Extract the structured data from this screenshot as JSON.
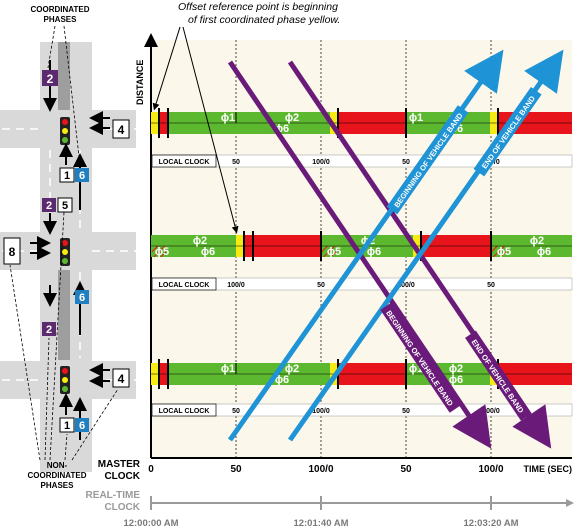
{
  "annotations": {
    "coordinated_phases": [
      "COORDINATED",
      "PHASES"
    ],
    "offset_note": [
      "Offset reference point is beginning",
      "of first coordinated phase yellow."
    ],
    "non_coordinated_phases": [
      "NON-",
      "COORDINATED",
      "PHASES"
    ]
  },
  "axes": {
    "y_label": "DISTANCE",
    "x_label": "TIME (SEC)",
    "master_clock": [
      "MASTER",
      "CLOCK"
    ],
    "master_ticks": [
      "0",
      "50",
      "100/0",
      "50",
      "100/0"
    ],
    "real_time_clock": [
      "REAL-TIME",
      "CLOCK"
    ],
    "real_time_ticks": [
      "12:00:00 AM",
      "12:01:40 AM",
      "12:03:20 AM"
    ]
  },
  "local_clock_label": "LOCAL CLOCK",
  "intersections": [
    {
      "name": "top",
      "clock_ticks": [
        "50",
        "100/0",
        "50",
        "100/0"
      ],
      "phase_labels": [
        "ϕ1",
        "ϕ2",
        "ϕ6",
        "ϕ1",
        "ϕ2",
        "ϕ6"
      ]
    },
    {
      "name": "middle",
      "clock_ticks": [
        "100/0",
        "50",
        "100/0",
        "50"
      ],
      "phase_labels": [
        "ϕ5",
        "ϕ2",
        "ϕ6",
        "ϕ5",
        "ϕ2",
        "ϕ6",
        "ϕ5",
        "ϕ2",
        "ϕ6"
      ]
    },
    {
      "name": "bottom",
      "clock_ticks": [
        "50",
        "100/0",
        "50",
        "100/0"
      ],
      "phase_labels": [
        "ϕ1",
        "ϕ2",
        "ϕ6",
        "ϕ1",
        "ϕ2",
        "ϕ6"
      ]
    }
  ],
  "bands": {
    "beginning": "BEGINNING OF VEHICLE BAND",
    "end": "END OF VEHICLE BAND"
  },
  "map": {
    "top_phases": {
      "purple": "2",
      "box_right": "4",
      "box_white": "1",
      "box_blue": "6"
    },
    "middle_phases": {
      "purple": "2",
      "box_white": "5",
      "box_left": "8",
      "box_blue": "6"
    },
    "bottom_phases": {
      "purple": "2",
      "box_right": "4",
      "box_white": "1",
      "box_blue": "6"
    }
  },
  "colors": {
    "red": "#e8141b",
    "green": "#5cb82e",
    "yellow": "#f5ea14",
    "purple": "#6a1b7a",
    "blue": "#1e93d6",
    "phase_purple": "#5c2a6e",
    "phase_blue": "#1f7fc1",
    "plot_bg": "#fbf7ea"
  }
}
